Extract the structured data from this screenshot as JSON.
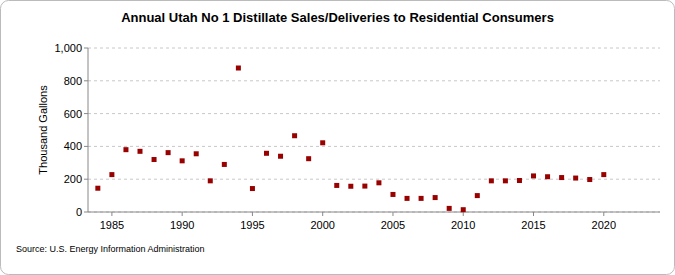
{
  "chart_data": {
    "type": "scatter",
    "title": "Annual Utah No 1 Distillate Sales/Deliveries to Residential Consumers",
    "y_label": "Thousand Gallons",
    "source": "Source: U.S. Energy Information Administration",
    "x": [
      1984,
      1985,
      1986,
      1987,
      1988,
      1989,
      1990,
      1991,
      1992,
      1993,
      1994,
      1995,
      1996,
      1997,
      1998,
      1999,
      2000,
      2001,
      2002,
      2003,
      2004,
      2005,
      2006,
      2007,
      2008,
      2009,
      2010,
      2011,
      2012,
      2013,
      2014,
      2015,
      2016,
      2017,
      2018,
      2019,
      2020
    ],
    "values": [
      145,
      228,
      380,
      370,
      320,
      362,
      312,
      355,
      190,
      290,
      878,
      143,
      358,
      340,
      465,
      325,
      422,
      162,
      157,
      158,
      178,
      107,
      83,
      83,
      88,
      22,
      14,
      100,
      190,
      190,
      192,
      220,
      215,
      210,
      207,
      198,
      228
    ],
    "color": "#990000",
    "marker": "square",
    "xlim": [
      1983.3,
      2024
    ],
    "xticks": [
      1985,
      1990,
      1995,
      2000,
      2005,
      2010,
      2015,
      2020
    ],
    "ylim": [
      0,
      1000
    ],
    "yticks": [
      0,
      200,
      400,
      600,
      800,
      {
        "value": 1000,
        "label": "1,000"
      }
    ],
    "grid": true
  }
}
